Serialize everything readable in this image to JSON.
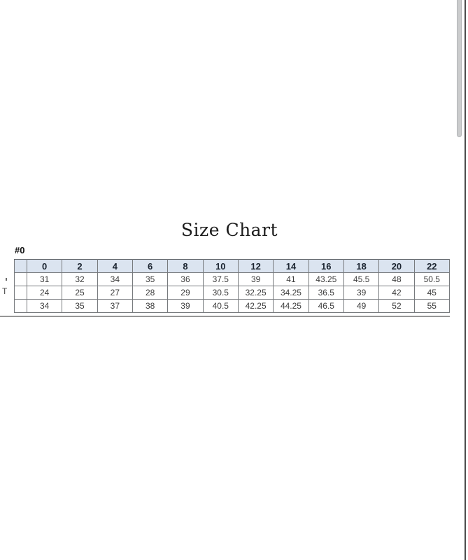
{
  "title": {
    "text": "Size Chart"
  },
  "sheet_label": "#0",
  "size_table": {
    "corner_label": "",
    "sizes": [
      "0",
      "2",
      "4",
      "6",
      "8",
      "10",
      "12",
      "14",
      "16",
      "18",
      "20",
      "22"
    ],
    "rows": [
      {
        "label_fragment": "",
        "values": [
          "31",
          "32",
          "34",
          "35",
          "36",
          "37.5",
          "39",
          "41",
          "43.25",
          "45.5",
          "48",
          "50.5"
        ]
      },
      {
        "label_fragment": "T",
        "values": [
          "24",
          "25",
          "27",
          "28",
          "29",
          "30.5",
          "32.25",
          "34.25",
          "36.5",
          "39",
          "42",
          "45"
        ]
      },
      {
        "label_fragment": "",
        "values": [
          "34",
          "35",
          "37",
          "38",
          "39",
          "40.5",
          "42.25",
          "44.25",
          "46.5",
          "49",
          "52",
          "55"
        ]
      }
    ]
  },
  "colors": {
    "header_background": "#dbe4f0",
    "header_text": "#1b2430",
    "cell_text": "#3d3d3d",
    "table_border": "#777a7d",
    "scrollbar_thumb": "#cbcccd",
    "frame_edge": "#4c4c4c",
    "page_background": "#ffffff"
  },
  "scrollbar": {
    "position": "top"
  }
}
